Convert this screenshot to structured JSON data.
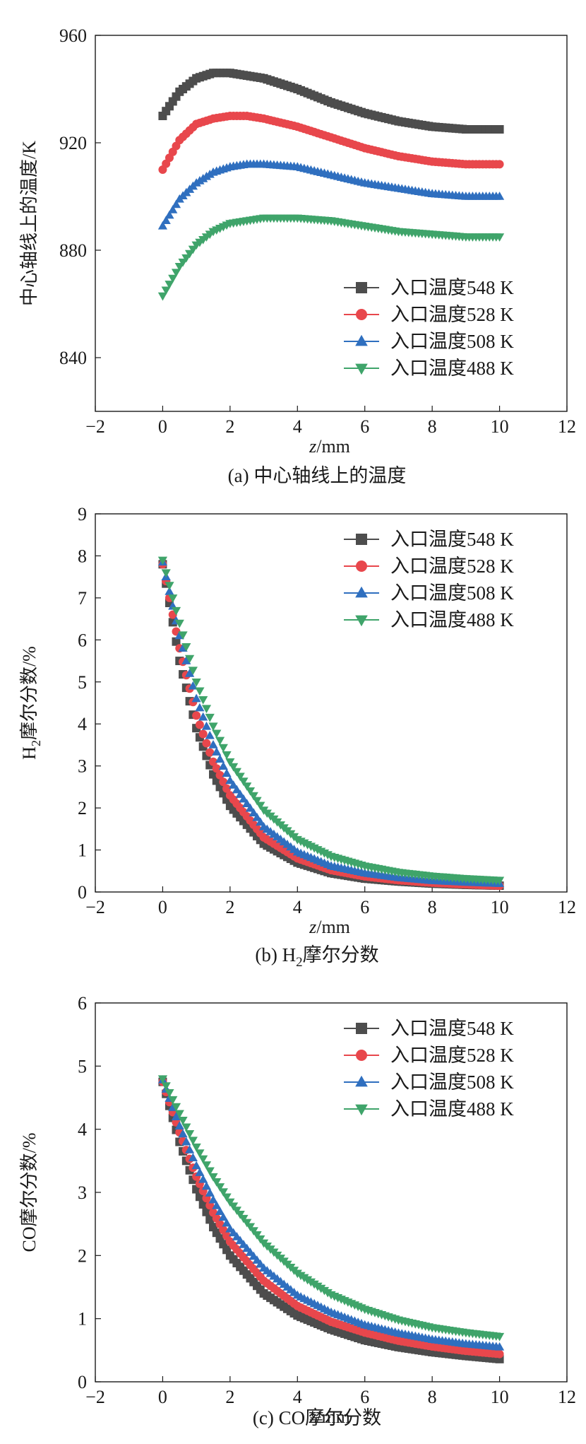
{
  "chart_data": [
    {
      "type": "scatter",
      "panel_label": "(a) 中心轴线上的温度",
      "xlabel_italic": "z",
      "xlabel_unit": "/mm",
      "ylabel": "中心轴线上的温度/K",
      "xlim": [
        -2,
        12
      ],
      "ylim": [
        820,
        960
      ],
      "xticks": [
        -2,
        0,
        2,
        4,
        6,
        8,
        10,
        12
      ],
      "yticks": [
        840,
        880,
        920,
        960
      ],
      "legend_position": "bottom-right",
      "series": [
        {
          "name": "入口温度548 K",
          "color": "#4d4d4d",
          "marker": "square",
          "x": [
            0,
            0.5,
            1,
            1.5,
            2,
            3,
            4,
            5,
            6,
            7,
            8,
            9,
            10
          ],
          "y": [
            930,
            939,
            944,
            946,
            946,
            944,
            940,
            935,
            931,
            928,
            926,
            925,
            925
          ]
        },
        {
          "name": "入口温度528 K",
          "color": "#e8474c",
          "marker": "circle",
          "x": [
            0,
            0.5,
            1,
            1.5,
            2,
            2.5,
            3,
            4,
            5,
            6,
            7,
            8,
            9,
            10
          ],
          "y": [
            910,
            921,
            927,
            929,
            930,
            930,
            929,
            926,
            922,
            918,
            915,
            913,
            912,
            912
          ]
        },
        {
          "name": "入口温度508 K",
          "color": "#2f6fbf",
          "marker": "triangle-up",
          "x": [
            0,
            0.5,
            1,
            1.5,
            2,
            2.5,
            3,
            4,
            5,
            6,
            7,
            8,
            9,
            10
          ],
          "y": [
            889,
            899,
            905,
            909,
            911,
            912,
            912,
            911,
            908,
            905,
            903,
            901,
            900,
            900
          ]
        },
        {
          "name": "入口温度488 K",
          "color": "#3fa46a",
          "marker": "triangle-down",
          "x": [
            0,
            0.5,
            1,
            1.5,
            2,
            3,
            3.5,
            4,
            5,
            6,
            7,
            8,
            9,
            10
          ],
          "y": [
            863,
            874,
            882,
            887,
            890,
            892,
            892,
            892,
            891,
            889,
            887,
            886,
            885,
            885
          ]
        }
      ]
    },
    {
      "type": "scatter",
      "panel_label_prefix": "(b) H",
      "panel_label_sub": "2",
      "panel_label_suffix": "摩尔分数",
      "xlabel_italic": "z",
      "xlabel_unit": "/mm",
      "ylabel_prefix": "H",
      "ylabel_sub": "2",
      "ylabel_suffix": "摩尔分数/%",
      "xlim": [
        -2,
        12
      ],
      "ylim": [
        0,
        9
      ],
      "xticks": [
        -2,
        0,
        2,
        4,
        6,
        8,
        10,
        12
      ],
      "yticks": [
        0,
        1,
        2,
        3,
        4,
        5,
        6,
        7,
        8,
        9
      ],
      "legend_position": "top-right",
      "series": [
        {
          "name": "入口温度548 K",
          "color": "#4d4d4d",
          "marker": "square",
          "x": [
            0,
            0.5,
            1,
            1.5,
            2,
            3,
            4,
            5,
            6,
            7,
            8,
            9,
            10
          ],
          "y": [
            7.8,
            5.5,
            3.9,
            2.8,
            2.05,
            1.15,
            0.7,
            0.45,
            0.32,
            0.25,
            0.2,
            0.17,
            0.15
          ]
        },
        {
          "name": "入口温度528 K",
          "color": "#e8474c",
          "marker": "circle",
          "x": [
            0,
            0.5,
            1,
            1.5,
            2,
            3,
            4,
            5,
            6,
            7,
            8,
            9,
            10
          ],
          "y": [
            7.8,
            5.8,
            4.2,
            3.1,
            2.3,
            1.3,
            0.8,
            0.52,
            0.37,
            0.28,
            0.22,
            0.18,
            0.15
          ]
        },
        {
          "name": "入口温度508 K",
          "color": "#2f6fbf",
          "marker": "triangle-up",
          "x": [
            0,
            0.5,
            1,
            1.5,
            2,
            3,
            4,
            5,
            6,
            7,
            8,
            9,
            10
          ],
          "y": [
            7.85,
            6.1,
            4.6,
            3.5,
            2.65,
            1.55,
            0.95,
            0.62,
            0.45,
            0.34,
            0.27,
            0.23,
            0.2
          ]
        },
        {
          "name": "入口温度488 K",
          "color": "#3fa46a",
          "marker": "triangle-down",
          "x": [
            0,
            0.5,
            1,
            1.5,
            2,
            3,
            4,
            5,
            6,
            7,
            8,
            9,
            10
          ],
          "y": [
            7.9,
            6.4,
            5.0,
            3.95,
            3.1,
            1.95,
            1.25,
            0.85,
            0.62,
            0.47,
            0.38,
            0.32,
            0.28
          ]
        }
      ]
    },
    {
      "type": "scatter",
      "panel_label": "(c) CO摩尔分数",
      "xlabel_italic": "z",
      "xlabel_unit": "/mm",
      "ylabel": "CO摩尔分数/%",
      "xlim": [
        -2,
        12
      ],
      "ylim": [
        0,
        6
      ],
      "xticks": [
        -2,
        0,
        2,
        4,
        6,
        8,
        10,
        12
      ],
      "yticks": [
        0,
        1,
        2,
        3,
        4,
        5,
        6
      ],
      "legend_position": "top-right",
      "series": [
        {
          "name": "入口温度548 K",
          "color": "#4d4d4d",
          "marker": "square",
          "x": [
            0,
            0.5,
            1,
            1.5,
            2,
            3,
            4,
            5,
            6,
            7,
            8,
            9,
            10
          ],
          "y": [
            4.75,
            3.8,
            3.05,
            2.45,
            2.0,
            1.4,
            1.05,
            0.83,
            0.66,
            0.55,
            0.47,
            0.41,
            0.36
          ]
        },
        {
          "name": "入口温度528 K",
          "color": "#e8474c",
          "marker": "circle",
          "x": [
            0,
            0.5,
            1,
            1.5,
            2,
            3,
            4,
            5,
            6,
            7,
            8,
            9,
            10
          ],
          "y": [
            4.75,
            3.95,
            3.25,
            2.68,
            2.22,
            1.6,
            1.2,
            0.95,
            0.78,
            0.65,
            0.56,
            0.49,
            0.44
          ]
        },
        {
          "name": "入口温度508 K",
          "color": "#2f6fbf",
          "marker": "triangle-up",
          "x": [
            0,
            0.5,
            1,
            1.5,
            2,
            3,
            4,
            5,
            6,
            7,
            8,
            9,
            10
          ],
          "y": [
            4.78,
            4.05,
            3.42,
            2.88,
            2.42,
            1.8,
            1.37,
            1.1,
            0.9,
            0.77,
            0.67,
            0.6,
            0.55
          ]
        },
        {
          "name": "入口温度488 K",
          "color": "#3fa46a",
          "marker": "triangle-down",
          "x": [
            0,
            0.5,
            1,
            1.5,
            2,
            3,
            4,
            5,
            6,
            7,
            8,
            9,
            10
          ],
          "y": [
            4.8,
            4.25,
            3.72,
            3.25,
            2.85,
            2.2,
            1.72,
            1.38,
            1.15,
            0.98,
            0.86,
            0.78,
            0.72
          ]
        }
      ]
    }
  ]
}
